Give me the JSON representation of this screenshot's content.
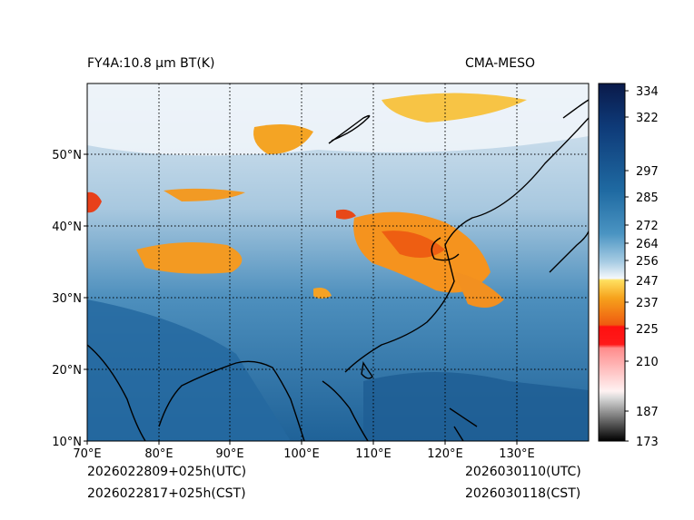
{
  "header": {
    "product": "FY4A:10.8 μm BT(K)",
    "model": "CMA-MESO"
  },
  "footer": {
    "init_utc": "2026022809+025h(UTC)",
    "init_cst": "2026022817+025h(CST)",
    "valid_utc": "2026030110(UTC)",
    "valid_cst": "2026030118(CST)"
  },
  "map": {
    "lon_range": [
      70,
      140
    ],
    "lat_range": [
      10,
      60
    ],
    "lon_ticks": [
      70,
      80,
      90,
      100,
      110,
      120,
      130
    ],
    "lon_labels": [
      "70°E",
      "80°E",
      "90°E",
      "100°E",
      "110°E",
      "120°E",
      "130°E"
    ],
    "lat_ticks": [
      10,
      20,
      30,
      40,
      50
    ],
    "lat_labels": [
      "10°N",
      "20°N",
      "30°N",
      "40°N",
      "50°N"
    ]
  },
  "colorbar": {
    "range": [
      173,
      334
    ],
    "tick_values": [
      334,
      322,
      297,
      285,
      272,
      264,
      256,
      247,
      237,
      225,
      210,
      187,
      173
    ],
    "tick_labels": [
      "334",
      "322",
      "297",
      "285",
      "272",
      "264",
      "256",
      "247",
      "237",
      "225",
      "210",
      "187",
      "173"
    ]
  },
  "colors": {
    "ocean": "#1d5f93",
    "land_warm": "#2c76a8",
    "cloud_cold": "#e8f1f8",
    "cloud_very_cold": "#f08a18",
    "coast": "#000000"
  }
}
